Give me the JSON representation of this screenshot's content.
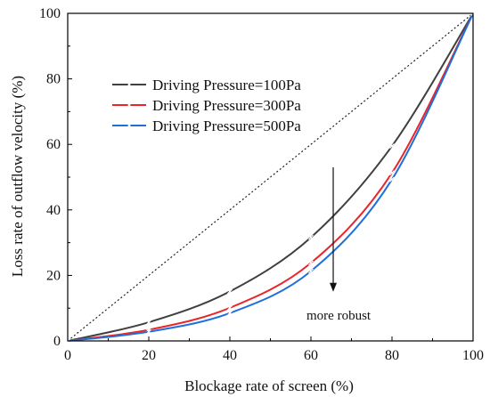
{
  "chart_data": {
    "type": "line",
    "title": "",
    "xlabel": "Blockage rate of screen  (%)",
    "ylabel": "Loss rate of outflow velocity  (%)",
    "xlim": [
      0,
      100
    ],
    "ylim": [
      0,
      100
    ],
    "xticks": [
      0,
      20,
      40,
      60,
      80,
      100
    ],
    "yticks": [
      0,
      20,
      40,
      60,
      80,
      100
    ],
    "xtick_labels": [
      "0",
      "20",
      "40",
      "60",
      "80",
      "100"
    ],
    "ytick_labels": [
      "0",
      "20",
      "40",
      "60",
      "80",
      "100"
    ],
    "grid": false,
    "legend_position": "top-left",
    "series": [
      {
        "name": "Driving Pressure=100Pa",
        "color": "#404040",
        "marker": "x",
        "x": [
          0,
          20,
          40,
          60,
          80,
          100
        ],
        "y": [
          0,
          5.7,
          15.1,
          31.6,
          59.5,
          100
        ]
      },
      {
        "name": "Driving Pressure=300Pa",
        "color": "#e8262a",
        "marker": "x",
        "x": [
          0,
          20,
          40,
          60,
          80,
          100
        ],
        "y": [
          0,
          3.4,
          10.1,
          23.8,
          51.3,
          100
        ]
      },
      {
        "name": "Driving Pressure=500Pa",
        "color": "#1f6fd9",
        "marker": "x",
        "x": [
          0,
          20,
          40,
          60,
          80,
          100
        ],
        "y": [
          0,
          2.8,
          8.5,
          21.3,
          49.3,
          100
        ]
      }
    ],
    "reference_line": {
      "style": "dashed",
      "color": "#222222",
      "x": [
        0,
        100
      ],
      "y": [
        0,
        100
      ]
    },
    "annotations": [
      {
        "text": "more robust",
        "arrow_x": 65.5,
        "arrow_y_start": 53,
        "arrow_y_end": 15
      }
    ]
  }
}
